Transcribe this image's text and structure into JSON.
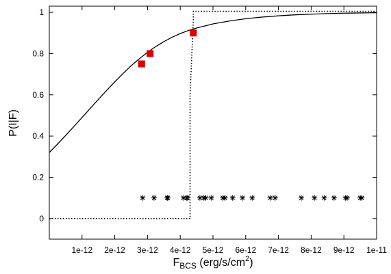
{
  "chart_data": {
    "type": "line",
    "xlabel": {
      "main": "F",
      "sub": "BCS",
      "unit_pre": " (erg/s/cm",
      "sup": "2",
      "unit_post": ")"
    },
    "ylabel": "P(I|F)",
    "xlim": [
      0,
      1e-11
    ],
    "ylim": [
      -0.1,
      1.03
    ],
    "x_ticks": [
      {
        "value": 1e-12,
        "label": "1e-12"
      },
      {
        "value": 2e-12,
        "label": "2e-12"
      },
      {
        "value": 3e-12,
        "label": "3e-12"
      },
      {
        "value": 4e-12,
        "label": "4e-12"
      },
      {
        "value": 5e-12,
        "label": "5e-12"
      },
      {
        "value": 6e-12,
        "label": "6e-12"
      },
      {
        "value": 7e-12,
        "label": "7e-12"
      },
      {
        "value": 8e-12,
        "label": "8e-12"
      },
      {
        "value": 9e-12,
        "label": "9e-12"
      },
      {
        "value": 1e-11,
        "label": "1e-11"
      }
    ],
    "y_ticks": [
      {
        "value": 0,
        "label": "0"
      },
      {
        "value": 0.2,
        "label": "0.2"
      },
      {
        "value": 0.4,
        "label": "0.4"
      },
      {
        "value": 0.6,
        "label": "0.6"
      },
      {
        "value": 0.8,
        "label": "0.8"
      },
      {
        "value": 1,
        "label": "1"
      }
    ],
    "grid": false,
    "series": [
      {
        "style": "solid",
        "color": "#000000",
        "x": [
          0,
          2.5e-13,
          5e-13,
          7.5e-13,
          1e-12,
          1.25e-12,
          1.5e-12,
          1.75e-12,
          2e-12,
          2.25e-12,
          2.5e-12,
          2.75e-12,
          3e-12,
          3.25e-12,
          3.5e-12,
          3.75e-12,
          4e-12,
          4.25e-12,
          4.5e-12,
          5e-12,
          5.5e-12,
          6e-12,
          6.5e-12,
          7e-12,
          7.5e-12,
          8e-12,
          8.5e-12,
          9e-12,
          9.5e-12,
          1e-11
        ],
        "y": [
          0.32,
          0.361,
          0.403,
          0.446,
          0.49,
          0.534,
          0.578,
          0.621,
          0.663,
          0.703,
          0.741,
          0.775,
          0.806,
          0.834,
          0.858,
          0.879,
          0.897,
          0.912,
          0.924,
          0.944,
          0.958,
          0.969,
          0.977,
          0.983,
          0.988,
          0.991,
          0.994,
          0.996,
          0.997,
          0.998
        ]
      },
      {
        "style": "dotted",
        "color": "#000000",
        "x": [
          0,
          4.3e-12,
          4.3e-12,
          4.4e-12,
          4.4e-12,
          1e-11
        ],
        "y": [
          0,
          0,
          0.6,
          0.96,
          1.005,
          1.005
        ]
      }
    ],
    "highlight_points": {
      "color": "#dd0000",
      "x": [
        2.82e-12,
        3.08e-12,
        4.4e-12
      ],
      "y": [
        0.75,
        0.8,
        0.9
      ]
    },
    "star_points": {
      "y": 0.1,
      "x": [
        2.85e-12,
        3.2e-12,
        3.6e-12,
        3.62e-12,
        4.1e-12,
        4.2e-12,
        4.22e-12,
        4.6e-12,
        4.72e-12,
        4.78e-12,
        4.95e-12,
        5.3e-12,
        5.37e-12,
        5.6e-12,
        5.9e-12,
        6.2e-12,
        6.75e-12,
        6.9e-12,
        7.7e-12,
        8.1e-12,
        8.4e-12,
        8.7e-12,
        9.05e-12,
        9.1e-12,
        9.5e-12,
        9.55e-12
      ]
    }
  }
}
